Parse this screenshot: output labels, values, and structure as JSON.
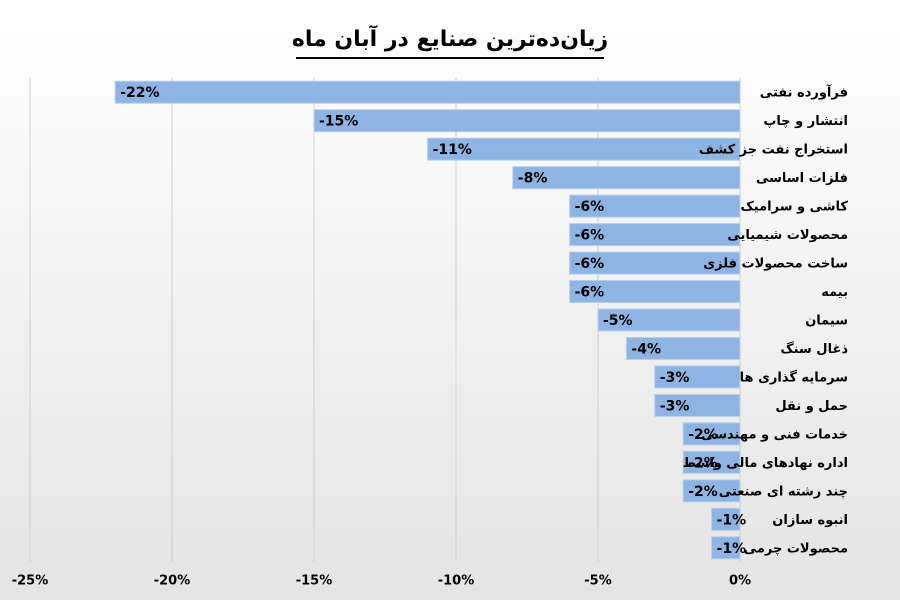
{
  "chart_data": {
    "type": "bar",
    "orientation": "horizontal",
    "title": "زیان‌ده‌ترین صنایع در آبان ماه",
    "categories": [
      "فرآورده نفتی",
      "انتشار و چاپ",
      "استخراج نفت جز کشف",
      "فلزات اساسی",
      "کاشی و سرامیک",
      "محصولات شیمیایی",
      "ساخت محصولات فلزی",
      "بیمه",
      "سیمان",
      "ذغال سنگ",
      "سرمایه گذاری ها",
      "حمل و نقل",
      "خدمات فنی و مهندسی",
      "اداره نهادهای مالی واسط",
      "چند رشته ای صنعتی",
      "انبوه سازان",
      "محصولات چرمی"
    ],
    "values": [
      -22,
      -15,
      -11,
      -8,
      -6,
      -6,
      -6,
      -6,
      -5,
      -4,
      -3,
      -3,
      -2,
      -2,
      -2,
      -1,
      -1
    ],
    "value_labels": [
      "-22%",
      "-15%",
      "-11%",
      "-8%",
      "-6%",
      "-6%",
      "-6%",
      "-6%",
      "-5%",
      "-4%",
      "-3%",
      "-3%",
      "-2%",
      "-2%",
      "-2%",
      "-1%",
      "-1%"
    ],
    "color": "#8db4e2",
    "xlim": [
      -25,
      0
    ],
    "xticks": [
      {
        "value": -25,
        "label": "-25%"
      },
      {
        "value": -20,
        "label": "-20%"
      },
      {
        "value": -15,
        "label": "-15%"
      },
      {
        "value": -10,
        "label": "-10%"
      },
      {
        "value": -5,
        "label": "-5%"
      },
      {
        "value": 0,
        "label": "0%"
      }
    ],
    "grid": true
  }
}
